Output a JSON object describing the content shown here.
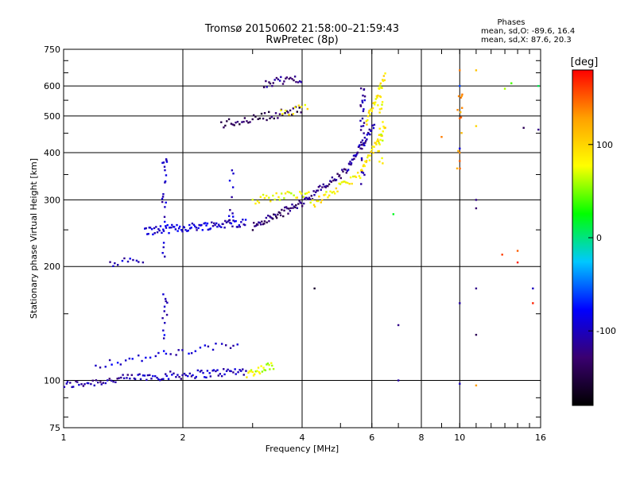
{
  "chart_data": {
    "type": "scatter",
    "title": "Tromsø 20150602 21:58:00–21:59:43",
    "subtitle": "RwPretec (8p)",
    "xlabel": "Frequency [MHz]",
    "ylabel": "Stationary phase Virtual Height [km]",
    "x_scale": "log",
    "y_scale": "log",
    "xlim": [
      1,
      16
    ],
    "ylim": [
      75,
      750
    ],
    "x_ticks": [
      1,
      2,
      4,
      6,
      8,
      10,
      16
    ],
    "x_tick_labels": [
      "1",
      "2",
      "4",
      "6",
      "8",
      "10",
      "16"
    ],
    "y_ticks": [
      75,
      100,
      200,
      300,
      400,
      500,
      600,
      750
    ],
    "y_tick_labels": [
      "75",
      "100",
      "200",
      "300",
      "400",
      "500",
      "600",
      "750"
    ],
    "grid": true,
    "stats": {
      "heading": "Phases",
      "lines": [
        "mean, sd,O: -89.6, 16.4",
        "mean, sd,X: 87.6, 20.3"
      ]
    },
    "colorbar": {
      "label": "[deg]",
      "range": [
        -180,
        180
      ],
      "ticks": [
        100,
        0,
        -100
      ],
      "tick_labels": [
        "100",
        "0",
        "-100"
      ],
      "colors": [
        "#000000",
        "#3a0070",
        "#0000ff",
        "#00c8ff",
        "#00ff00",
        "#ffff00",
        "#ffa000",
        "#ff0000"
      ]
    },
    "series": [
      {
        "segments": [
          {
            "f0": 1.0,
            "f1": 1.55,
            "h0": 97,
            "h1": 102,
            "phase": -110,
            "n": 40
          },
          {
            "f0": 1.55,
            "f1": 2.2,
            "h0": 102,
            "h1": 104,
            "phase": -105,
            "n": 35
          },
          {
            "f0": 2.2,
            "f1": 2.9,
            "h0": 104,
            "h1": 106,
            "phase": -100,
            "n": 30
          },
          {
            "f0": 2.9,
            "f1": 3.4,
            "h0": 104,
            "h1": 110,
            "phase": 70,
            "n": 25
          },
          {
            "f0": 1.2,
            "f1": 2.8,
            "h0": 110,
            "h1": 125,
            "phase": -95,
            "n": 35
          },
          {
            "f0": 1.3,
            "f1": 1.6,
            "h0": 205,
            "h1": 208,
            "phase": -100,
            "n": 12
          },
          {
            "f0": 1.6,
            "f1": 2.9,
            "h0": 248,
            "h1": 262,
            "phase": -95,
            "n": 90
          },
          {
            "f0": 3.0,
            "f1": 3.9,
            "h0": 255,
            "h1": 290,
            "phase": -130,
            "n": 45
          },
          {
            "f0": 3.9,
            "f1": 5.2,
            "h0": 290,
            "h1": 360,
            "phase": -120,
            "n": 45
          },
          {
            "f0": 5.2,
            "f1": 6.1,
            "h0": 360,
            "h1": 480,
            "phase": -110,
            "n": 40
          },
          {
            "f0": 3.0,
            "f1": 4.2,
            "h0": 300,
            "h1": 315,
            "phase": 80,
            "n": 30
          },
          {
            "f0": 4.2,
            "f1": 5.6,
            "h0": 290,
            "h1": 350,
            "phase": 85,
            "n": 35
          },
          {
            "f0": 5.6,
            "f1": 6.5,
            "h0": 350,
            "h1": 470,
            "phase": 90,
            "n": 35
          },
          {
            "f0": 2.5,
            "f1": 4.0,
            "h0": 475,
            "h1": 520,
            "phase": -140,
            "n": 45
          },
          {
            "f0": 3.5,
            "f1": 4.2,
            "h0": 505,
            "h1": 530,
            "phase": 85,
            "n": 10
          },
          {
            "f0": 3.2,
            "f1": 4.0,
            "h0": 610,
            "h1": 630,
            "phase": -120,
            "n": 25
          },
          {
            "f0": 5.8,
            "f1": 6.5,
            "h0": 480,
            "h1": 640,
            "phase": 90,
            "n": 30
          }
        ],
        "columns": [
          {
            "f": 1.8,
            "h0": 210,
            "h1": 410,
            "phase": -100,
            "n": 22
          },
          {
            "f": 1.8,
            "h0": 125,
            "h1": 170,
            "phase": -95,
            "n": 12
          },
          {
            "f": 2.65,
            "h0": 260,
            "h1": 420,
            "phase": -100,
            "n": 10
          },
          {
            "f": 5.7,
            "h0": 330,
            "h1": 630,
            "phase": -110,
            "n": 28
          },
          {
            "f": 6.3,
            "h0": 370,
            "h1": 600,
            "phase": 80,
            "n": 20
          },
          {
            "f": 10.0,
            "h0": 350,
            "h1": 660,
            "phase": 130,
            "n": 14
          }
        ],
        "scatter": [
          [
            10.0,
            660,
            140
          ],
          [
            10.0,
            600,
            -60
          ],
          [
            10.0,
            410,
            -90
          ],
          [
            10.0,
            380,
            150
          ],
          [
            11.0,
            660,
            110
          ],
          [
            11.0,
            470,
            100
          ],
          [
            11.0,
            300,
            -120
          ],
          [
            11.0,
            285,
            -130
          ],
          [
            11.0,
            175,
            -120
          ],
          [
            11.0,
            132,
            -140
          ],
          [
            7.0,
            140,
            -120
          ],
          [
            7.0,
            100,
            -110
          ],
          [
            4.3,
            175,
            -160
          ],
          [
            6.8,
            275,
            20
          ],
          [
            13.0,
            590,
            60
          ],
          [
            13.5,
            610,
            40
          ],
          [
            14.0,
            220,
            150
          ],
          [
            14.0,
            205,
            170
          ],
          [
            14.5,
            465,
            -140
          ],
          [
            15.3,
            160,
            170
          ],
          [
            15.3,
            175,
            -100
          ],
          [
            15.8,
            460,
            -120
          ],
          [
            15.8,
            600,
            10
          ],
          [
            12.8,
            215,
            160
          ],
          [
            9.0,
            440,
            140
          ],
          [
            10.0,
            160,
            -110
          ],
          [
            10.0,
            98,
            -100
          ],
          [
            11.0,
            97,
            130
          ]
        ]
      }
    ]
  }
}
